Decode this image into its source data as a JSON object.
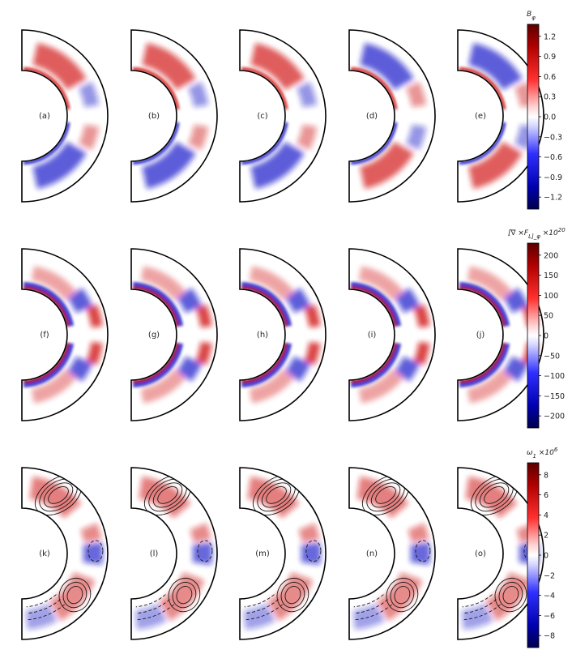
{
  "rows": [
    {
      "panel_labels": [
        "(a)",
        "(b)",
        "(c)",
        "(d)",
        "(e)"
      ],
      "colorbar": {
        "title": "B_φ",
        "ticks": [
          "1.2",
          "0.9",
          "0.6",
          "0.3",
          "0.0",
          "−0.3",
          "−0.6",
          "−0.9",
          "−1.2"
        ],
        "colormap": "seismic"
      }
    },
    {
      "panel_labels": [
        "(f)",
        "(g)",
        "(h)",
        "(i)",
        "(j)"
      ],
      "colorbar": {
        "title": "[∇ ×F_L]_φ ×10^20",
        "ticks": [
          "200",
          "150",
          "100",
          "50",
          "0",
          "−50",
          "−100",
          "−150",
          "−200"
        ],
        "colormap": "seismic"
      }
    },
    {
      "panel_labels": [
        "(k)",
        "(l)",
        "(m)",
        "(n)",
        "(o)"
      ],
      "colorbar": {
        "title": "ω_1 ×10^6",
        "ticks": [
          "8",
          "6",
          "4",
          "2",
          "0",
          "−2",
          "−4",
          "−6",
          "−8"
        ],
        "colormap": "seismic"
      }
    }
  ],
  "colors": {
    "positive": "#d01010",
    "negative": "#1515c8",
    "outline": "#000000",
    "contour": "#1a1a1a"
  }
}
